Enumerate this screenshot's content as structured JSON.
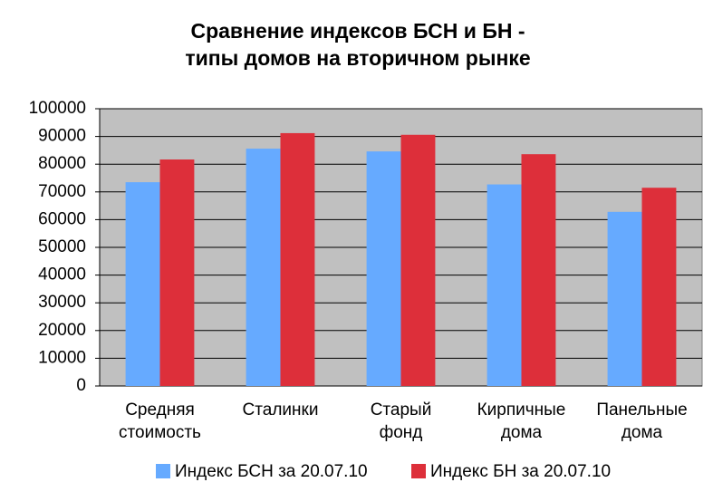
{
  "chart_data": {
    "type": "bar",
    "title": [
      "Сравнение индексов БСН и БН -",
      "типы домов на вторичном рынке"
    ],
    "categories": [
      [
        "Средняя",
        "стоимость"
      ],
      [
        "Сталинки"
      ],
      [
        "Старый",
        "фонд"
      ],
      [
        "Кирпичные",
        "дома"
      ],
      [
        "Панельные",
        "дома"
      ]
    ],
    "series": [
      {
        "name": "Индекс БСН за 20.07.10",
        "color": "#66aaff",
        "values": [
          73500,
          85600,
          84600,
          72700,
          62800
        ]
      },
      {
        "name": "Индекс БН за 20.07.10",
        "color": "#dd2f3a",
        "values": [
          81700,
          91200,
          90600,
          83600,
          71500
        ]
      }
    ],
    "ylim": [
      0,
      100000
    ],
    "yticks": [
      0,
      10000,
      20000,
      30000,
      40000,
      50000,
      60000,
      70000,
      80000,
      90000,
      100000
    ],
    "grid": true,
    "legend": "bottom"
  }
}
